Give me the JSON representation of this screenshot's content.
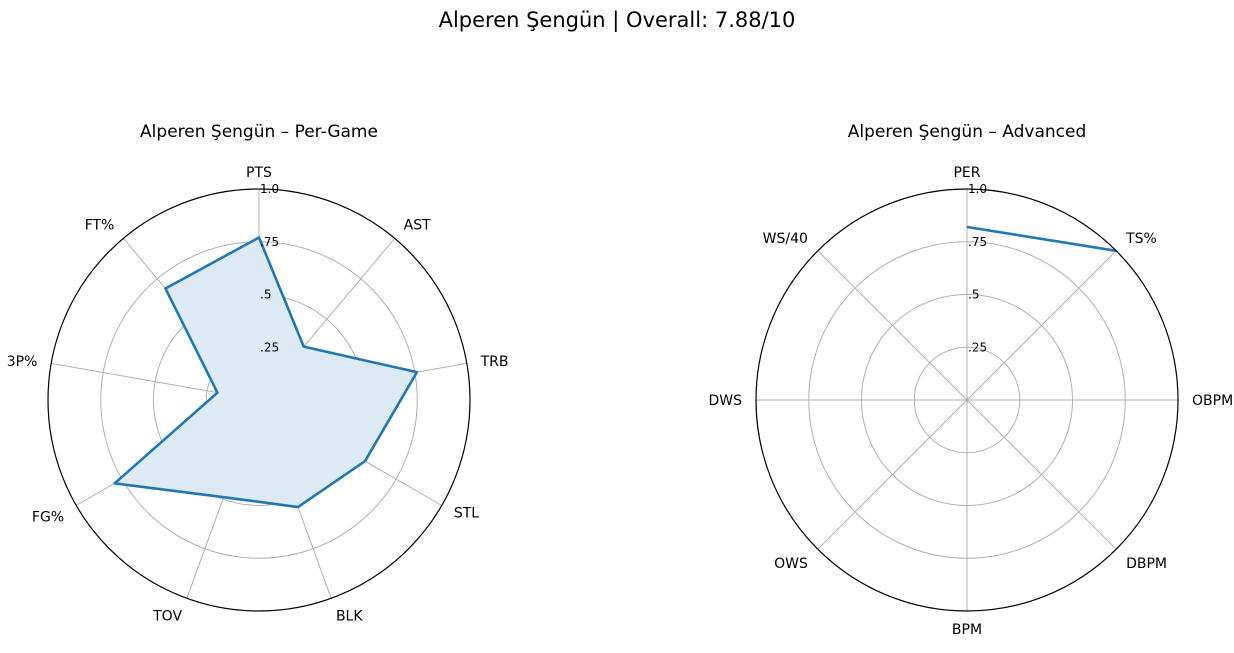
{
  "suptitle": "Alperen Şengün | Overall: 7.88/10",
  "colors": {
    "series": "#1f77b4",
    "fill": "#dde9f3",
    "grid": "#b0b0b0",
    "frame": "#000000"
  },
  "chart_data": [
    {
      "type": "radar",
      "title": "Alperen Şengün – Per-Game",
      "rlim": [
        0,
        1
      ],
      "rticks": [
        0.25,
        0.5,
        0.75,
        1.0
      ],
      "rtick_labels": [
        ".25",
        ".5",
        ".75",
        "1.0"
      ],
      "grid": true,
      "filled": true,
      "categories": [
        "PTS",
        "AST",
        "TRB",
        "STL",
        "BLK",
        "TOV",
        "FG%",
        "3P%",
        "FT%"
      ],
      "values": [
        0.77,
        0.33,
        0.76,
        0.58,
        0.54,
        0.49,
        0.79,
        0.2,
        0.69
      ]
    },
    {
      "type": "radar",
      "title": "Alperen Şengün – Advanced",
      "rlim": [
        0,
        1
      ],
      "rticks": [
        0.25,
        0.5,
        0.75,
        1.0
      ],
      "rtick_labels": [
        ".25",
        ".5",
        ".75",
        "1.0"
      ],
      "grid": true,
      "filled": false,
      "categories": [
        "PER",
        "TS%",
        "OBPM",
        "DBPM",
        "BPM",
        "OWS",
        "DWS",
        "WS/40"
      ],
      "values": [
        0.82,
        1.0,
        null,
        null,
        null,
        null,
        null,
        null
      ]
    }
  ]
}
